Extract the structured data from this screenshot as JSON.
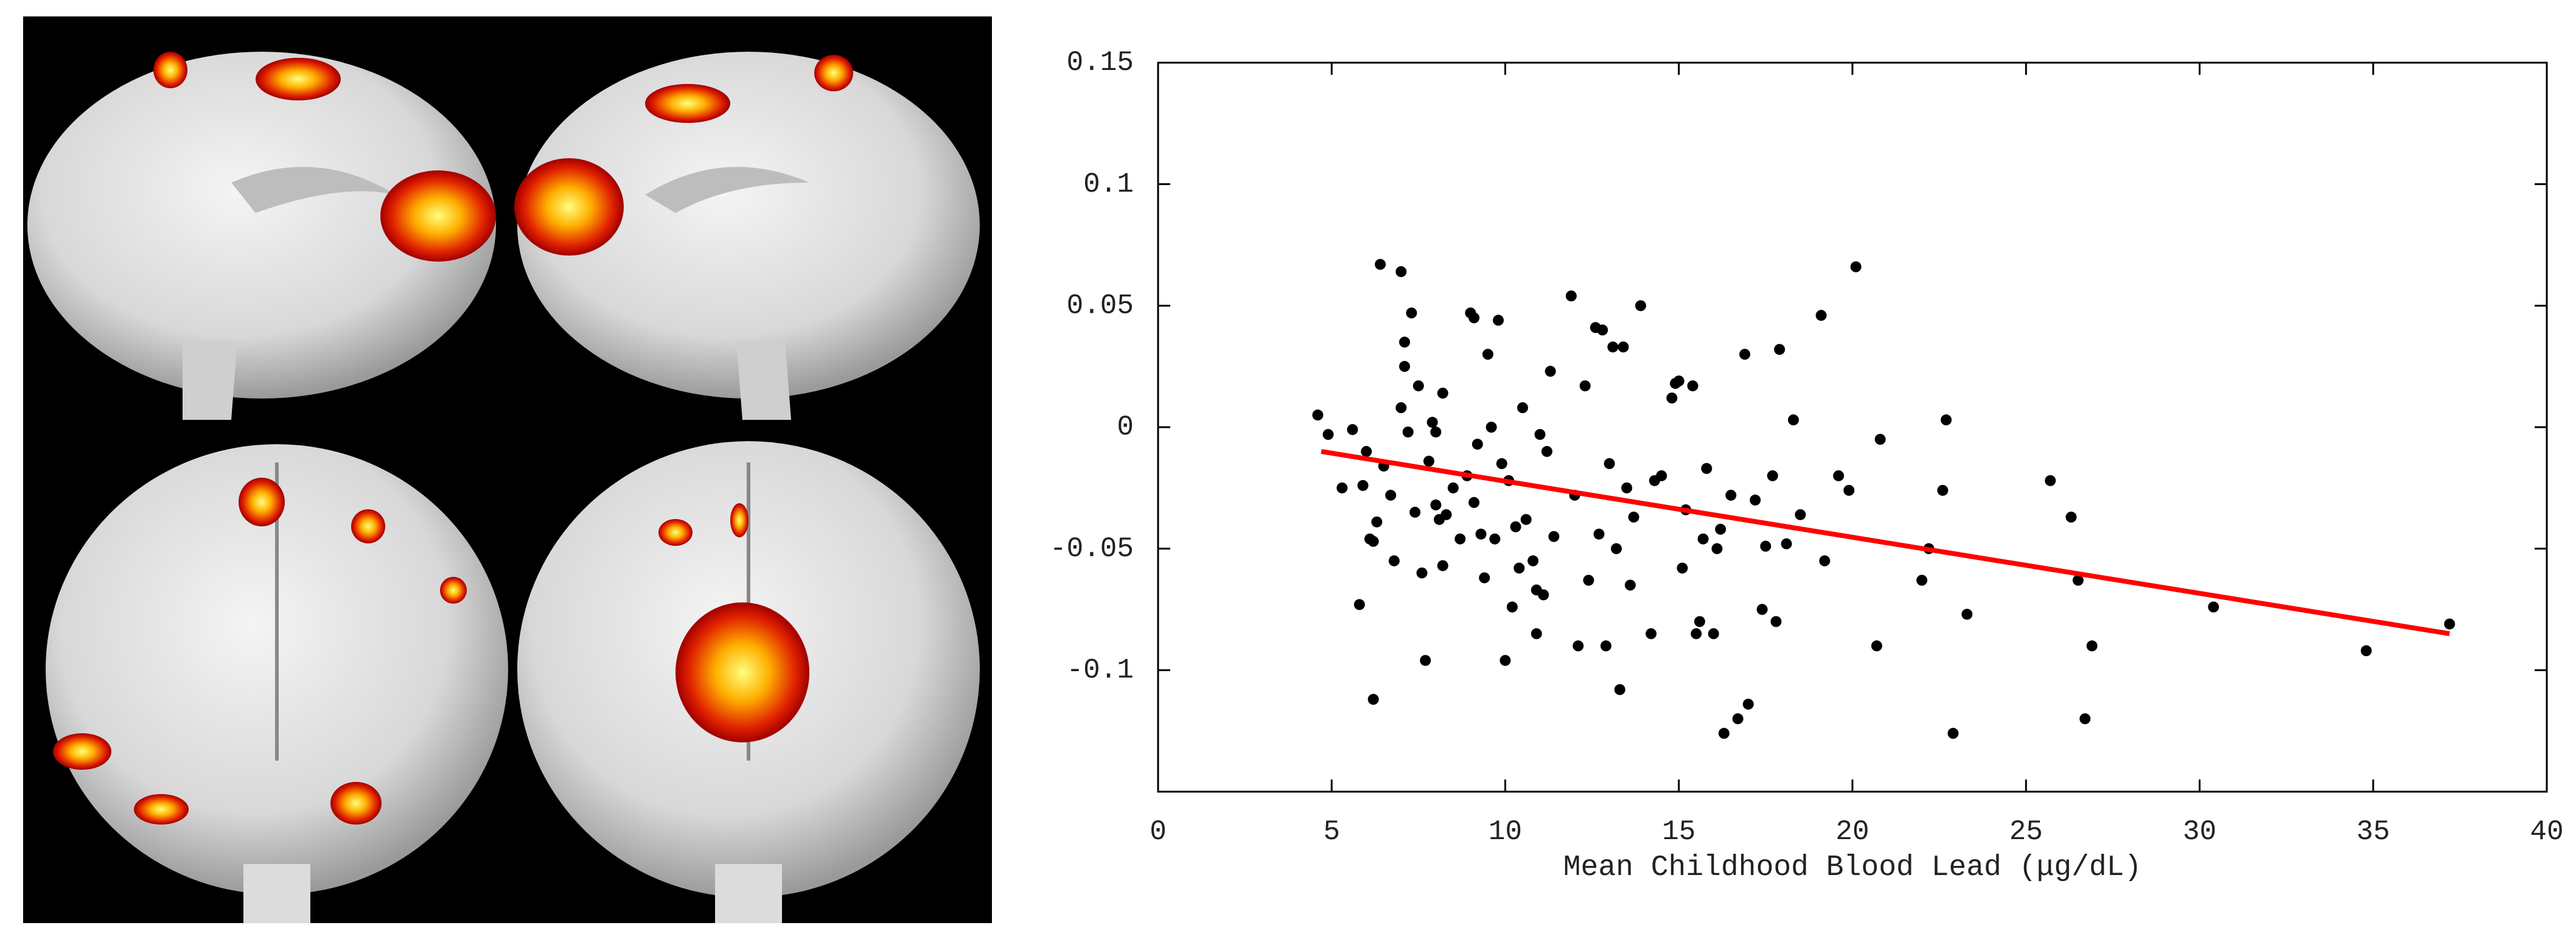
{
  "chart_data": {
    "type": "scatter",
    "x_label": "Mean Childhood Blood Lead (μg/dL)",
    "xlim": [
      0,
      40
    ],
    "xticks": [
      0,
      5,
      10,
      15,
      20,
      25,
      30,
      35,
      40
    ],
    "ylim": [
      -0.15,
      0.15
    ],
    "yticks": [
      0.15,
      0.1,
      0.05,
      0,
      -0.05,
      -0.1
    ],
    "points": {
      "color": "#000000",
      "x": [
        4.6,
        4.9,
        5.3,
        5.6,
        5.8,
        5.9,
        6.0,
        6.1,
        6.2,
        6.3,
        6.2,
        6.4,
        6.5,
        6.7,
        6.8,
        7.0,
        7.0,
        7.1,
        7.1,
        7.2,
        7.3,
        7.4,
        7.5,
        7.6,
        7.7,
        7.8,
        7.9,
        8.0,
        8.0,
        8.1,
        8.2,
        8.2,
        8.3,
        8.5,
        8.7,
        8.9,
        9.0,
        9.1,
        9.1,
        9.2,
        9.3,
        9.4,
        9.5,
        9.6,
        9.7,
        9.8,
        9.9,
        10.0,
        10.1,
        10.2,
        10.3,
        10.4,
        10.5,
        10.6,
        10.8,
        10.9,
        10.9,
        11.0,
        11.1,
        11.2,
        11.3,
        11.4,
        11.9,
        12.0,
        12.1,
        12.3,
        12.4,
        12.6,
        12.7,
        12.8,
        12.9,
        13.0,
        13.1,
        13.2,
        13.3,
        13.4,
        13.5,
        13.6,
        13.7,
        13.9,
        14.2,
        14.3,
        14.5,
        14.8,
        14.9,
        15.0,
        15.1,
        15.2,
        15.4,
        15.5,
        15.6,
        15.7,
        15.8,
        16.0,
        16.1,
        16.2,
        16.3,
        16.5,
        16.7,
        16.9,
        17.0,
        17.2,
        17.4,
        17.5,
        17.7,
        17.8,
        17.9,
        18.1,
        18.3,
        18.5,
        19.1,
        19.2,
        19.6,
        19.9,
        20.1,
        20.7,
        20.8,
        22.0,
        22.2,
        22.6,
        22.7,
        22.9,
        23.3,
        25.7,
        26.3,
        26.5,
        26.7,
        26.9,
        30.4,
        34.8,
        37.2
      ],
      "y": [
        0.005,
        -0.003,
        -0.025,
        -0.001,
        -0.073,
        -0.024,
        -0.01,
        -0.046,
        -0.112,
        -0.039,
        -0.047,
        0.067,
        -0.016,
        -0.028,
        -0.055,
        0.008,
        0.064,
        0.025,
        0.035,
        -0.002,
        0.047,
        -0.035,
        0.017,
        -0.06,
        -0.096,
        -0.014,
        0.002,
        -0.002,
        -0.032,
        -0.038,
        -0.057,
        0.014,
        -0.036,
        -0.025,
        -0.046,
        -0.02,
        0.047,
        -0.031,
        0.045,
        -0.007,
        -0.044,
        -0.062,
        0.03,
        0.0,
        -0.046,
        0.044,
        -0.015,
        -0.096,
        -0.022,
        -0.074,
        -0.041,
        -0.058,
        0.008,
        -0.038,
        -0.055,
        -0.067,
        -0.085,
        -0.003,
        -0.069,
        -0.01,
        0.023,
        -0.045,
        0.054,
        -0.028,
        -0.09,
        0.017,
        -0.063,
        0.041,
        -0.044,
        0.04,
        -0.09,
        -0.015,
        0.033,
        -0.05,
        -0.108,
        0.033,
        -0.025,
        -0.065,
        -0.037,
        0.05,
        -0.085,
        -0.022,
        -0.02,
        0.012,
        0.018,
        0.019,
        -0.058,
        -0.034,
        0.017,
        -0.085,
        -0.08,
        -0.046,
        -0.017,
        -0.085,
        -0.05,
        -0.042,
        -0.126,
        -0.028,
        -0.12,
        0.03,
        -0.114,
        -0.03,
        -0.075,
        -0.049,
        -0.02,
        -0.08,
        0.032,
        -0.048,
        0.003,
        -0.036,
        0.046,
        -0.055,
        -0.02,
        -0.026,
        0.066,
        -0.09,
        -0.005,
        -0.063,
        -0.05,
        -0.026,
        0.003,
        -0.126,
        -0.077,
        -0.022,
        -0.037,
        -0.063,
        -0.12,
        -0.09,
        -0.074,
        -0.092,
        -0.081
      ]
    },
    "fit_line": {
      "color": "#ff0000",
      "x": [
        4.7,
        37.2
      ],
      "y": [
        -0.01,
        -0.085
      ]
    }
  }
}
